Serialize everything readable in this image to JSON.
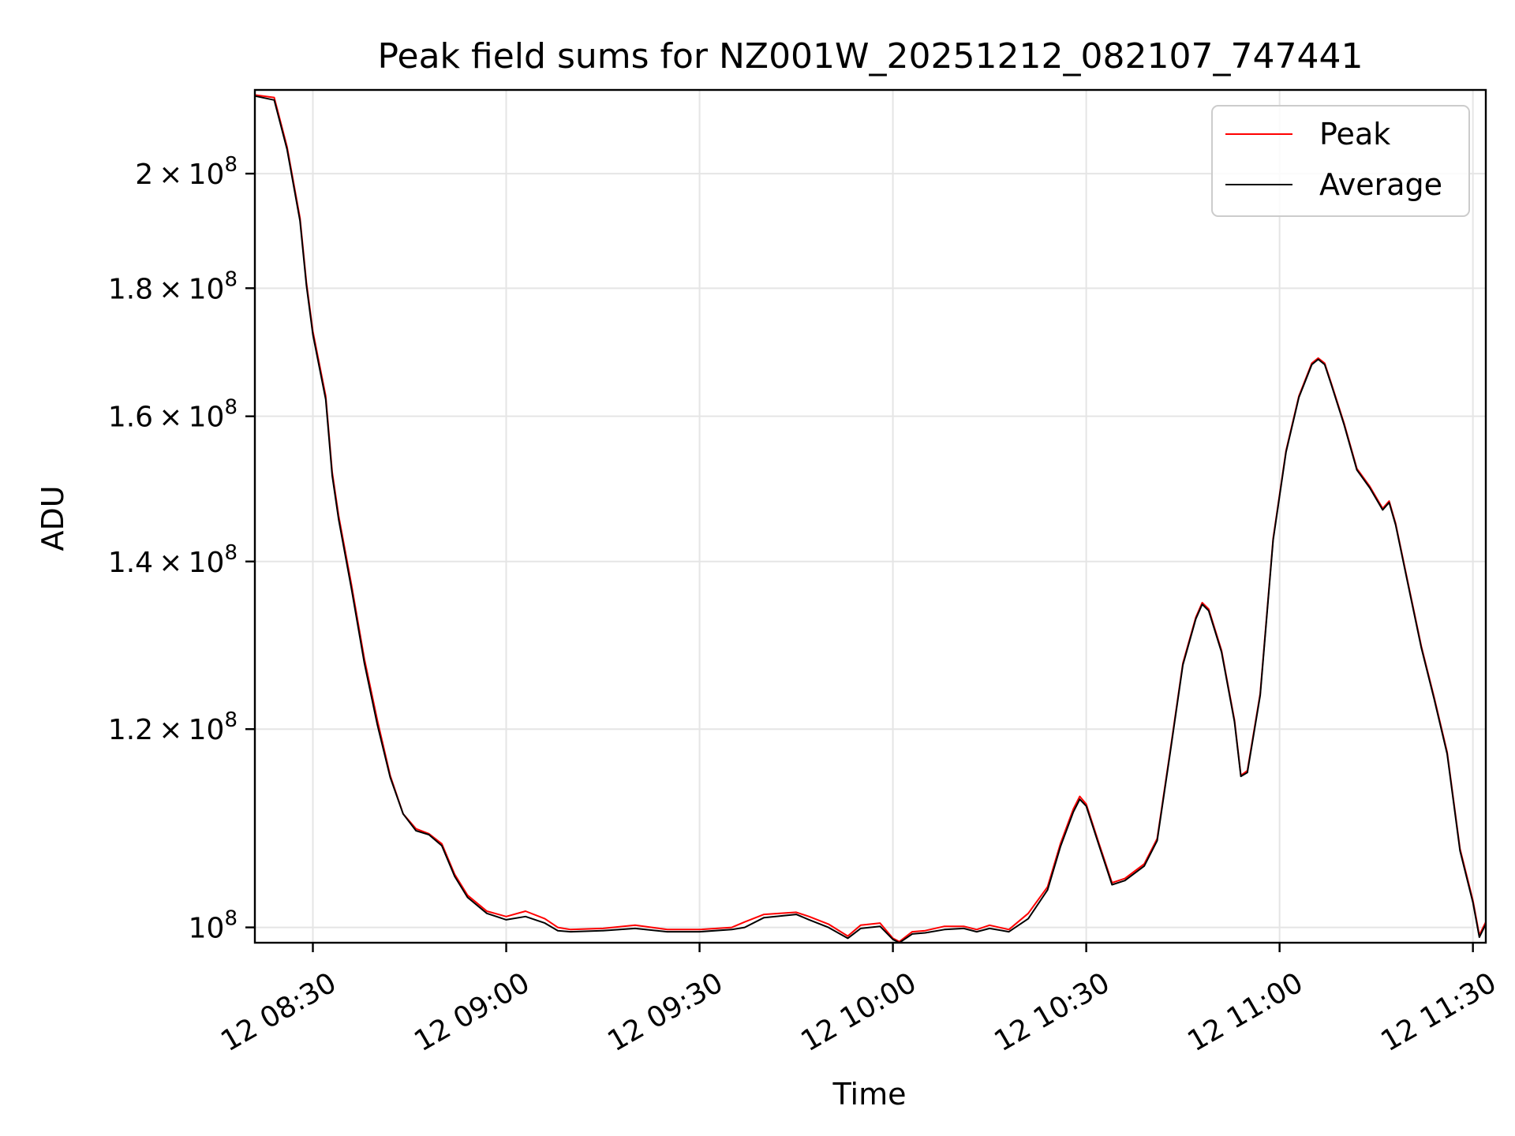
{
  "chart_data": {
    "type": "line",
    "title": "Peak field sums for NZ001W_20251212_082107_747441",
    "xlabel": "Time",
    "ylabel": "ADU",
    "yscale": "log",
    "grid": true,
    "legend_position": "top-right",
    "xlim": [
      "12 08:21",
      "12 11:32"
    ],
    "ylim": [
      98600000,
      216000000
    ],
    "x_ticks": [
      "12 08:30",
      "12 09:00",
      "12 09:30",
      "12 10:00",
      "12 10:30",
      "12 11:00",
      "12 11:30"
    ],
    "y_ticks": [
      {
        "value": 100000000,
        "mantissa": "",
        "times": "",
        "base": "10",
        "exp": "8"
      },
      {
        "value": 120000000,
        "mantissa": "1.2",
        "times": "×",
        "base": "10",
        "exp": "8"
      },
      {
        "value": 140000000,
        "mantissa": "1.4",
        "times": "×",
        "base": "10",
        "exp": "8"
      },
      {
        "value": 160000000,
        "mantissa": "1.6",
        "times": "×",
        "base": "10",
        "exp": "8"
      },
      {
        "value": 180000000,
        "mantissa": "1.8",
        "times": "×",
        "base": "10",
        "exp": "8"
      },
      {
        "value": 200000000,
        "mantissa": "2",
        "times": "×",
        "base": "10",
        "exp": "8"
      }
    ],
    "series": [
      {
        "name": "Peak",
        "color": "#ff0000",
        "x": [
          "12 08:21",
          "12 08:24",
          "12 08:26",
          "12 08:28",
          "12 08:29",
          "12 08:30",
          "12 08:32",
          "12 08:33",
          "12 08:34",
          "12 08:36",
          "12 08:38",
          "12 08:40",
          "12 08:42",
          "12 08:44",
          "12 08:46",
          "12 08:48",
          "12 08:50",
          "12 08:52",
          "12 08:54",
          "12 08:57",
          "12 09:00",
          "12 09:03",
          "12 09:06",
          "12 09:08",
          "12 09:10",
          "12 09:15",
          "12 09:20",
          "12 09:25",
          "12 09:30",
          "12 09:35",
          "12 09:37",
          "12 09:40",
          "12 09:45",
          "12 09:47",
          "12 09:50",
          "12 09:53",
          "12 09:55",
          "12 09:58",
          "12 10:00",
          "12 10:01",
          "12 10:03",
          "12 10:05",
          "12 10:08",
          "12 10:11",
          "12 10:13",
          "12 10:15",
          "12 10:18",
          "12 10:21",
          "12 10:24",
          "12 10:26",
          "12 10:28",
          "12 10:29",
          "12 10:30",
          "12 10:32",
          "12 10:34",
          "12 10:36",
          "12 10:39",
          "12 10:41",
          "12 10:43",
          "12 10:45",
          "12 10:47",
          "12 10:48",
          "12 10:49",
          "12 10:51",
          "12 10:53",
          "12 10:54",
          "12 10:55",
          "12 10:57",
          "12 10:59",
          "12 11:01",
          "12 11:03",
          "12 11:05",
          "12 11:06",
          "12 11:07",
          "12 11:08",
          "12 11:10",
          "12 11:12",
          "12 11:14",
          "12 11:16",
          "12 11:17",
          "12 11:18",
          "12 11:20",
          "12 11:22",
          "12 11:24",
          "12 11:26",
          "12 11:28",
          "12 11:30",
          "12 11:31",
          "12 11:32"
        ],
        "values": [
          215000000,
          214500000,
          205000000,
          192000000,
          181000000,
          173000000,
          163000000,
          152000000,
          146000000,
          137000000,
          128000000,
          121000000,
          115000000,
          111000000,
          109500000,
          109000000,
          108000000,
          105000000,
          103000000,
          101500000,
          101000000,
          101500000,
          100800000,
          100000000,
          99800000,
          99900000,
          100200000,
          99800000,
          99800000,
          100000000,
          100500000,
          101200000,
          101400000,
          101000000,
          100300000,
          99200000,
          100200000,
          100400000,
          99000000,
          98700000,
          99600000,
          99700000,
          100100000,
          100100000,
          99800000,
          100200000,
          99800000,
          101300000,
          103800000,
          108000000,
          111500000,
          112800000,
          112000000,
          108000000,
          104200000,
          104600000,
          106000000,
          108500000,
          117500000,
          127500000,
          133000000,
          134800000,
          134000000,
          129000000,
          121000000,
          115000000,
          115500000,
          124000000,
          143000000,
          155000000,
          163000000,
          168000000,
          168800000,
          168000000,
          165000000,
          159000000,
          152500000,
          150000000,
          147000000,
          148000000,
          145000000,
          137000000,
          129500000,
          123500000,
          117500000,
          107500000,
          102500000,
          99300000,
          100500000
        ]
      },
      {
        "name": "Average",
        "color": "#000000",
        "x": [
          "12 08:21",
          "12 08:24",
          "12 08:26",
          "12 08:28",
          "12 08:29",
          "12 08:30",
          "12 08:32",
          "12 08:33",
          "12 08:34",
          "12 08:36",
          "12 08:38",
          "12 08:40",
          "12 08:42",
          "12 08:44",
          "12 08:46",
          "12 08:48",
          "12 08:50",
          "12 08:52",
          "12 08:54",
          "12 08:57",
          "12 09:00",
          "12 09:03",
          "12 09:06",
          "12 09:08",
          "12 09:10",
          "12 09:15",
          "12 09:20",
          "12 09:25",
          "12 09:30",
          "12 09:35",
          "12 09:37",
          "12 09:40",
          "12 09:45",
          "12 09:47",
          "12 09:50",
          "12 09:53",
          "12 09:55",
          "12 09:58",
          "12 10:00",
          "12 10:01",
          "12 10:03",
          "12 10:05",
          "12 10:08",
          "12 10:11",
          "12 10:13",
          "12 10:15",
          "12 10:18",
          "12 10:21",
          "12 10:24",
          "12 10:26",
          "12 10:28",
          "12 10:29",
          "12 10:30",
          "12 10:32",
          "12 10:34",
          "12 10:36",
          "12 10:39",
          "12 10:41",
          "12 10:43",
          "12 10:45",
          "12 10:47",
          "12 10:48",
          "12 10:49",
          "12 10:51",
          "12 10:53",
          "12 10:54",
          "12 10:55",
          "12 10:57",
          "12 10:59",
          "12 11:01",
          "12 11:03",
          "12 11:05",
          "12 11:06",
          "12 11:07",
          "12 11:08",
          "12 11:10",
          "12 11:12",
          "12 11:14",
          "12 11:16",
          "12 11:17",
          "12 11:18",
          "12 11:20",
          "12 11:22",
          "12 11:24",
          "12 11:26",
          "12 11:28",
          "12 11:30",
          "12 11:31",
          "12 11:32"
        ],
        "values": [
          214800000,
          214000000,
          204500000,
          191500000,
          180500000,
          172500000,
          162500000,
          151500000,
          145500000,
          136500000,
          127500000,
          120500000,
          114800000,
          111000000,
          109300000,
          108900000,
          107800000,
          104800000,
          102800000,
          101300000,
          100700000,
          101000000,
          100400000,
          99700000,
          99600000,
          99700000,
          99900000,
          99600000,
          99600000,
          99800000,
          100000000,
          100900000,
          101200000,
          100700000,
          100000000,
          99000000,
          99900000,
          100100000,
          98900000,
          98600000,
          99400000,
          99500000,
          99800000,
          99900000,
          99600000,
          99900000,
          99600000,
          100800000,
          103500000,
          107700000,
          111200000,
          112500000,
          111800000,
          107800000,
          104000000,
          104400000,
          105800000,
          108300000,
          117300000,
          127300000,
          132800000,
          134600000,
          133800000,
          128800000,
          120800000,
          114900000,
          115300000,
          123800000,
          142800000,
          154800000,
          162800000,
          167800000,
          168600000,
          167800000,
          164800000,
          158800000,
          152300000,
          149800000,
          146800000,
          147800000,
          144800000,
          136800000,
          129300000,
          123300000,
          117300000,
          107300000,
          102300000,
          99100000,
          100300000
        ]
      }
    ]
  }
}
